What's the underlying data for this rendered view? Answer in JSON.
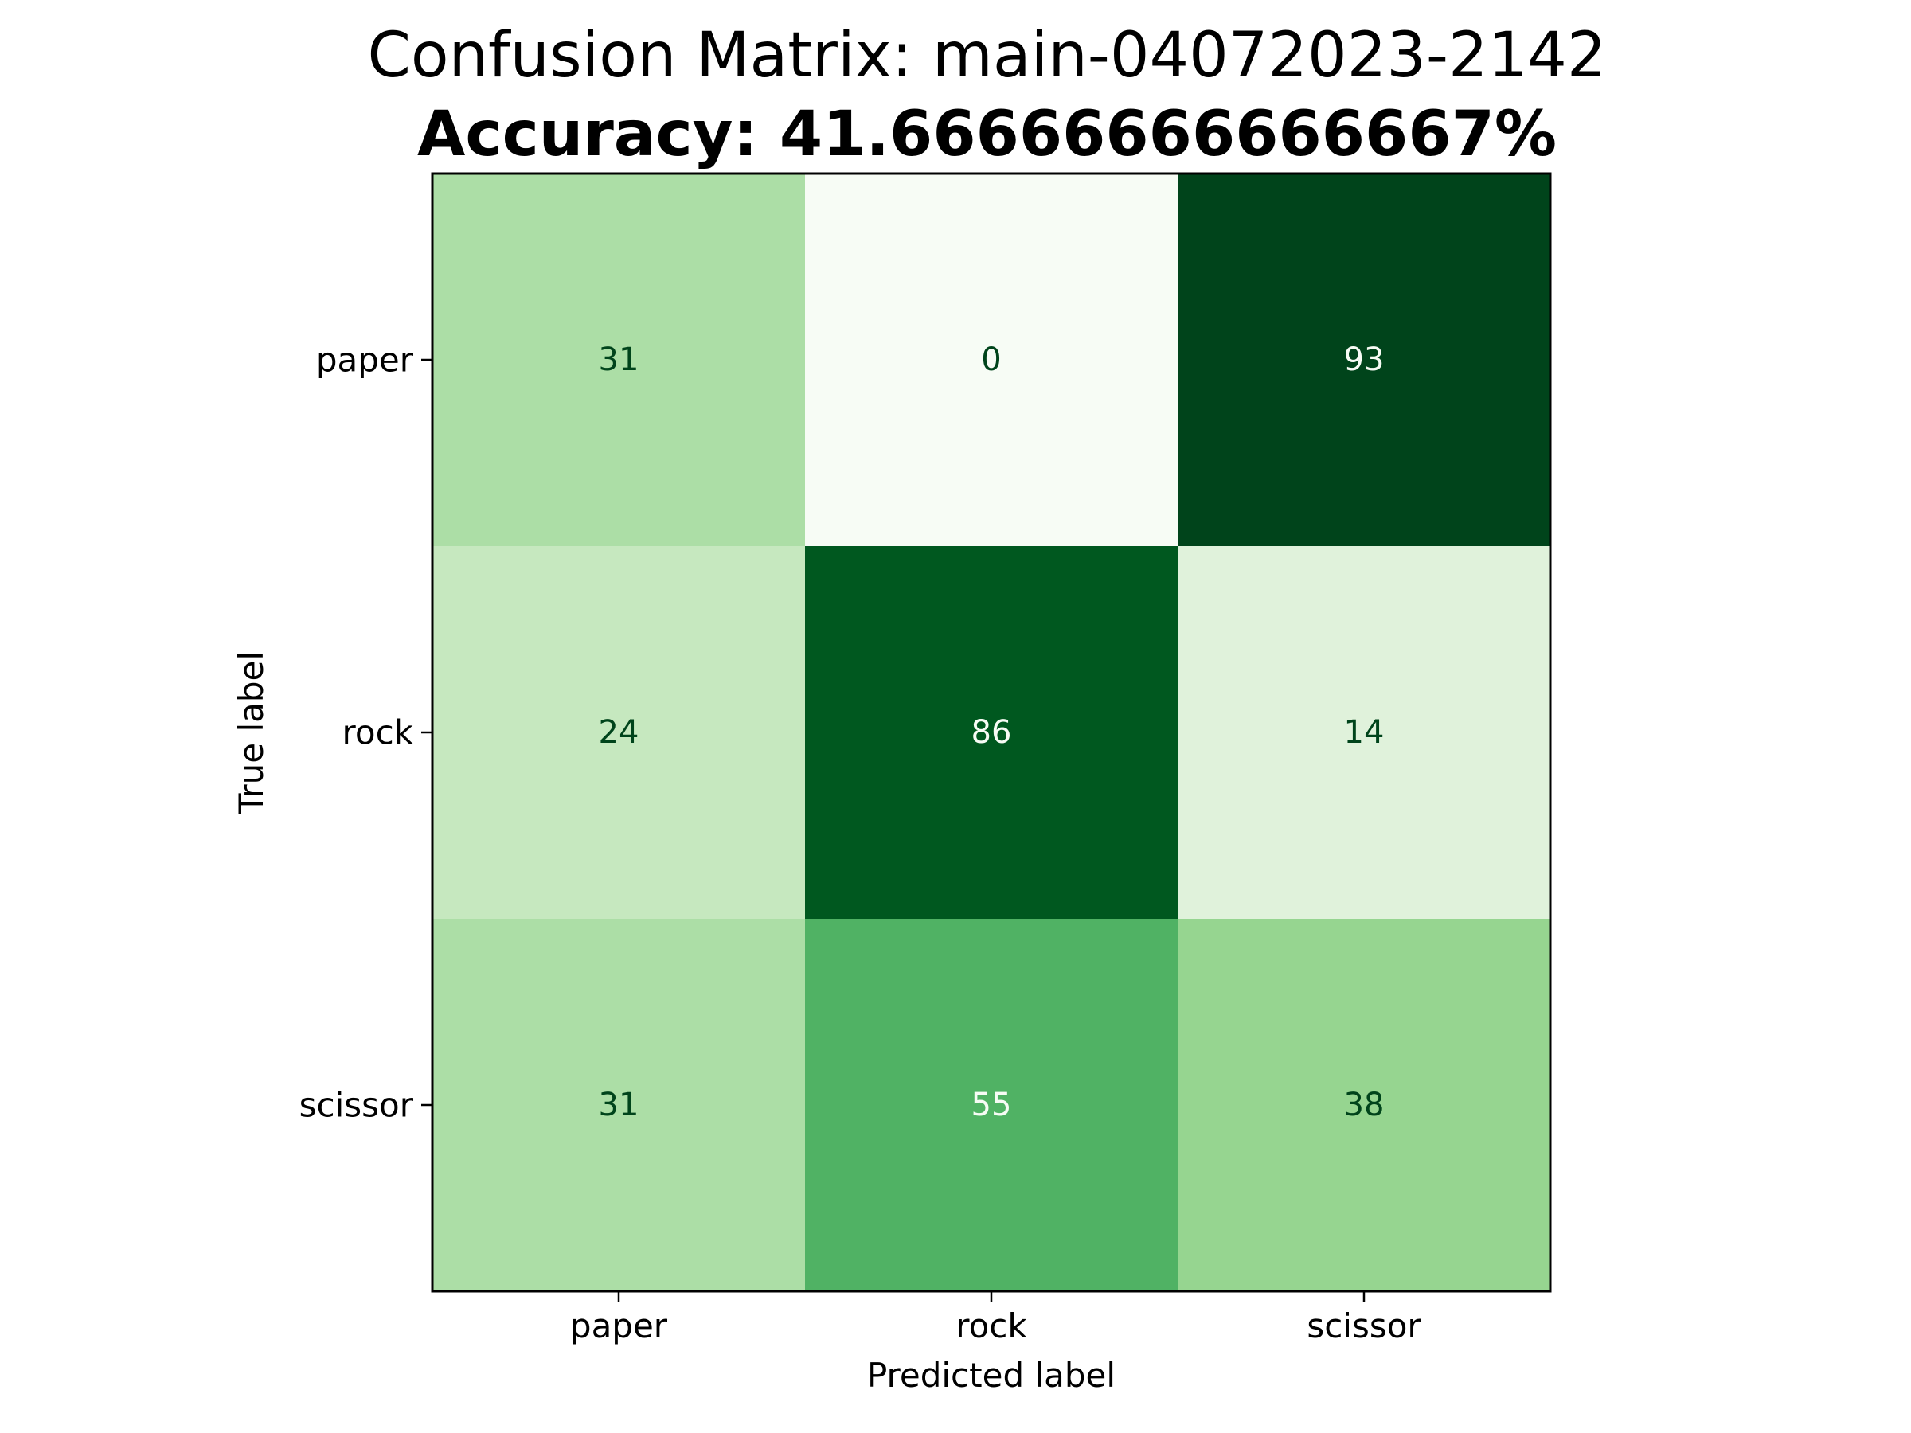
{
  "chart_data": {
    "type": "heatmap",
    "title": "Confusion Matrix: main-04072023-2142",
    "subtitle": "Accuracy: 41.66666666666667%",
    "xlabel": "Predicted label",
    "ylabel": "True label",
    "x_categories": [
      "paper",
      "rock",
      "scissor"
    ],
    "y_categories": [
      "paper",
      "rock",
      "scissor"
    ],
    "values": [
      [
        31,
        0,
        93
      ],
      [
        24,
        86,
        14
      ],
      [
        31,
        55,
        38
      ]
    ],
    "colormap": "Greens",
    "value_range": [
      0,
      93
    ],
    "colorbar": false,
    "grid": false
  },
  "colors": {
    "cell_fill": [
      [
        "#acdea6",
        "#f7fcf5",
        "#00441b"
      ],
      [
        "#c6e8bf",
        "#00581f",
        "#e0f2db"
      ],
      [
        "#acdea6",
        "#50b264",
        "#96d590"
      ]
    ],
    "text_on_light": "#00441b",
    "text_on_dark": "#f7fcf5",
    "axes_edge": "#000000"
  }
}
